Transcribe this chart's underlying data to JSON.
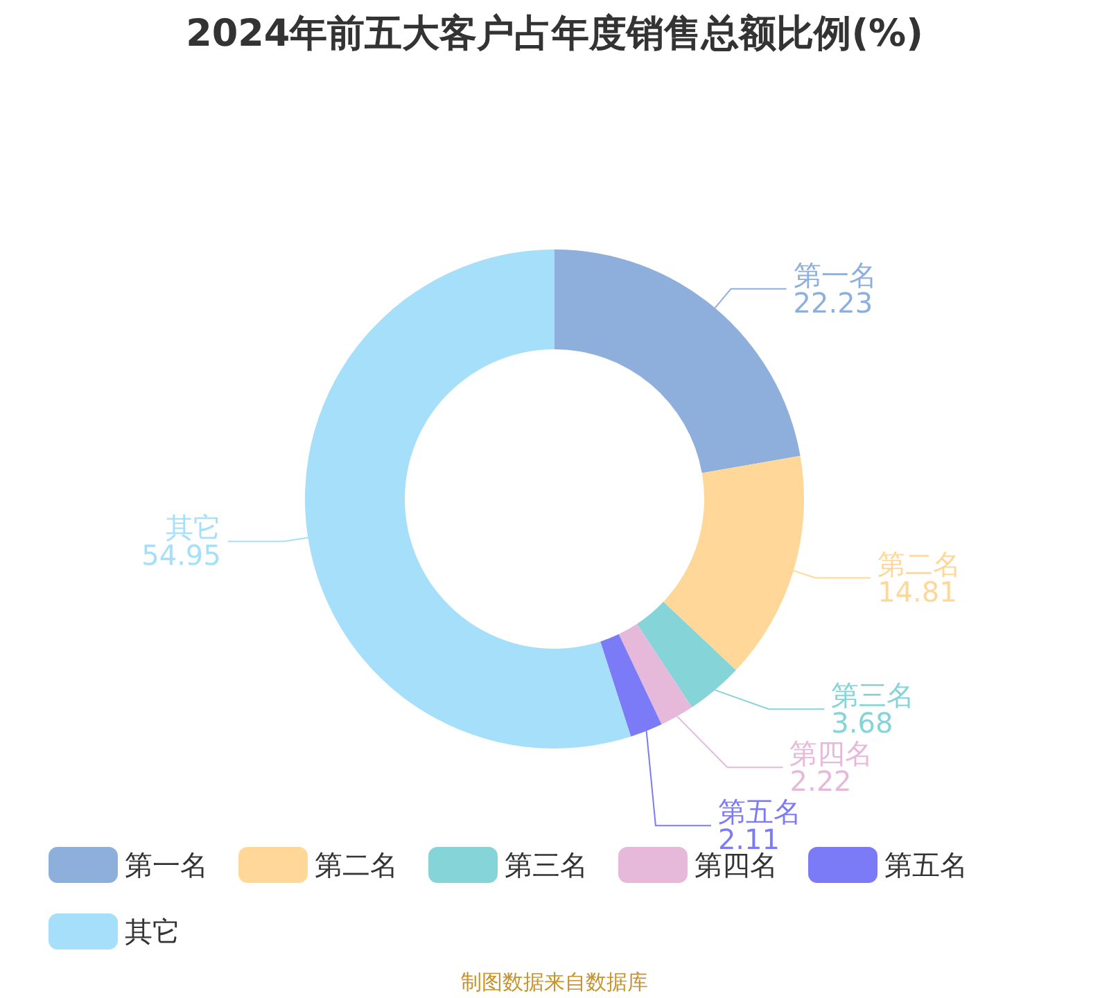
{
  "chart_data": {
    "type": "donut",
    "title": "2024年前五大客户占年度销售总额比例(%)",
    "categories": [
      "第一名",
      "第二名",
      "第三名",
      "第四名",
      "第五名",
      "其它"
    ],
    "values": [
      22.23,
      14.81,
      3.68,
      2.22,
      2.11,
      54.95
    ],
    "colors": [
      "#8eaedb",
      "#ffd899",
      "#85d4d8",
      "#e6b8d9",
      "#7b7bf7",
      "#a6dff9"
    ],
    "data_labels": true,
    "legend": "bottom",
    "annotations": [
      "制图数据来自数据库"
    ]
  }
}
